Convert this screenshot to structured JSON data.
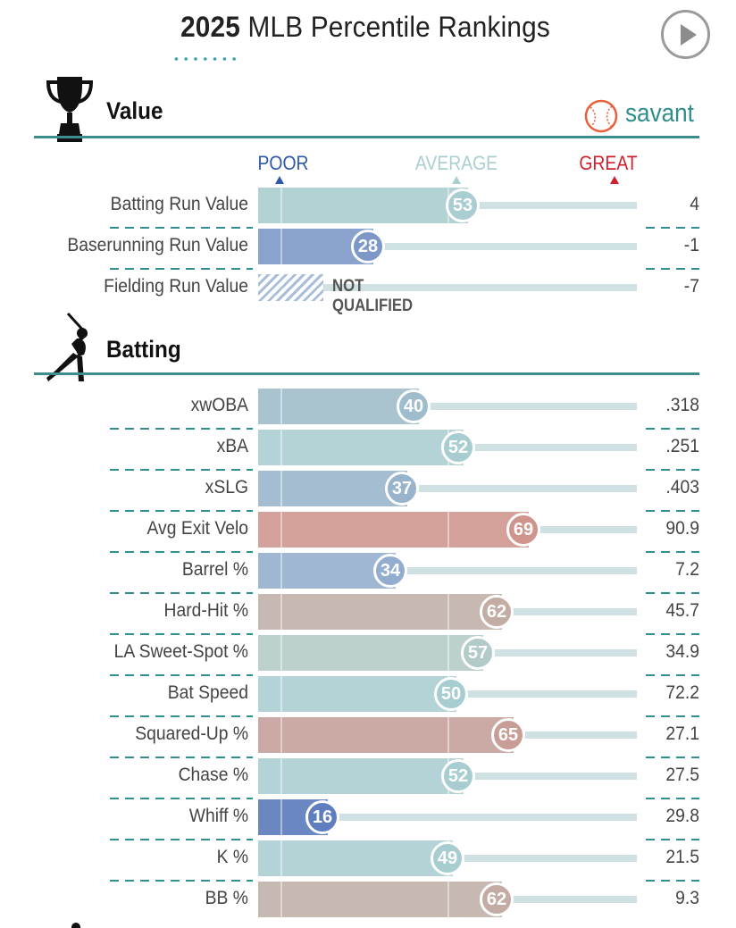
{
  "header": {
    "title_year": "2025",
    "title_rest": "MLB Percentile Rankings",
    "play_icon": "play-icon"
  },
  "brand": {
    "name": "savant",
    "logo_icon": "baseball-icon",
    "color": "#2e8d8d"
  },
  "scale": {
    "poor": "POOR",
    "average": "AVERAGE",
    "great": "GREAT",
    "poor_color": "#2e59a8",
    "average_color": "#a9cfd1",
    "great_color": "#d0202d"
  },
  "value_section": {
    "title": "Value",
    "icon": "trophy-icon",
    "rows": [
      {
        "label": "Batting Run Value",
        "percentile": 53,
        "value": "4",
        "color": "#b2d2d4",
        "badge_color": "#a9cdd0"
      },
      {
        "label": "Baserunning Run Value",
        "percentile": 28,
        "value": "-1",
        "color": "#89a3cc",
        "badge_color": "#7d98c6"
      },
      {
        "label": "Fielding Run Value",
        "percentile": null,
        "value": "-7",
        "qualified": false,
        "not_qualified_text": "NOT QUALIFIED"
      }
    ]
  },
  "batting_section": {
    "title": "Batting",
    "icon": "batter-icon",
    "rows": [
      {
        "label": "xwOBA",
        "percentile": 40,
        "value": ".318",
        "color": "#a9c3cf",
        "badge_color": "#9ebccb"
      },
      {
        "label": "xBA",
        "percentile": 52,
        "value": ".251",
        "color": "#b3d3d6",
        "badge_color": "#a8cdd1"
      },
      {
        "label": "xSLG",
        "percentile": 37,
        "value": ".403",
        "color": "#a5bdd0",
        "badge_color": "#98b4cc"
      },
      {
        "label": "Avg Exit Velo",
        "percentile": 69,
        "value": "90.9",
        "color": "#d3a199",
        "badge_color": "#cf958c"
      },
      {
        "label": "Barrel %",
        "percentile": 34,
        "value": "7.2",
        "color": "#9fb7d3",
        "badge_color": "#92adcf"
      },
      {
        "label": "Hard-Hit %",
        "percentile": 62,
        "value": "45.7",
        "color": "#c7b8b2",
        "badge_color": "#c2aca4"
      },
      {
        "label": "LA Sweet-Spot %",
        "percentile": 57,
        "value": "34.9",
        "color": "#bcd0ce",
        "badge_color": "#b2cbc9"
      },
      {
        "label": "Bat Speed",
        "percentile": 50,
        "value": "72.2",
        "color": "#b3d3d6",
        "badge_color": "#a8cdd1"
      },
      {
        "label": "Squared-Up %",
        "percentile": 65,
        "value": "27.1",
        "color": "#cbaaa5",
        "badge_color": "#c79d96"
      },
      {
        "label": "Chase %",
        "percentile": 52,
        "value": "27.5",
        "color": "#b3d3d6",
        "badge_color": "#a8cdd1"
      },
      {
        "label": "Whiff %",
        "percentile": 16,
        "value": "29.8",
        "color": "#6a87c2",
        "badge_color": "#5f7ebf"
      },
      {
        "label": "K %",
        "percentile": 49,
        "value": "21.5",
        "color": "#b3d3d6",
        "badge_color": "#a8cdd1"
      },
      {
        "label": "BB %",
        "percentile": 62,
        "value": "9.3",
        "color": "#c7b8b2",
        "badge_color": "#c2aca4"
      }
    ]
  }
}
